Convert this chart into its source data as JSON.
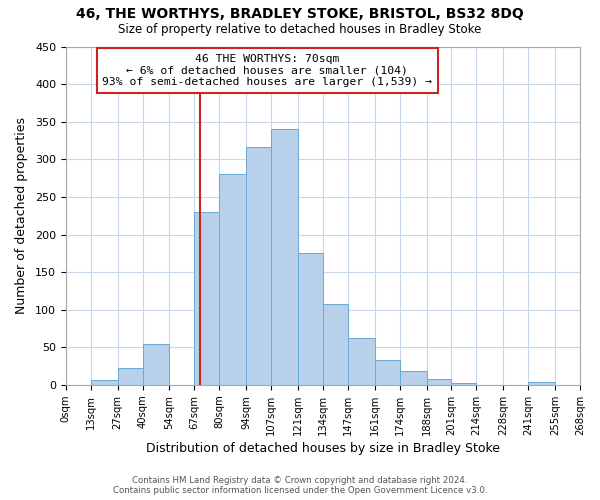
{
  "title_line1": "46, THE WORTHYS, BRADLEY STOKE, BRISTOL, BS32 8DQ",
  "title_line2": "Size of property relative to detached houses in Bradley Stoke",
  "xlabel": "Distribution of detached houses by size in Bradley Stoke",
  "ylabel": "Number of detached properties",
  "footnote_line1": "Contains HM Land Registry data © Crown copyright and database right 2024.",
  "footnote_line2": "Contains public sector information licensed under the Open Government Licence v3.0.",
  "bar_edges": [
    0,
    13,
    27,
    40,
    54,
    67,
    80,
    94,
    107,
    121,
    134,
    147,
    161,
    174,
    188,
    201,
    214,
    228,
    241,
    255,
    268
  ],
  "bar_heights": [
    0,
    6,
    22,
    55,
    0,
    230,
    280,
    317,
    340,
    175,
    108,
    62,
    33,
    19,
    8,
    2,
    0,
    0,
    4,
    0
  ],
  "bar_color": "#b8d0ea",
  "bar_edgecolor": "#6aaad4",
  "tick_labels": [
    "0sqm",
    "13sqm",
    "27sqm",
    "40sqm",
    "54sqm",
    "67sqm",
    "80sqm",
    "94sqm",
    "107sqm",
    "121sqm",
    "134sqm",
    "147sqm",
    "161sqm",
    "174sqm",
    "188sqm",
    "201sqm",
    "214sqm",
    "228sqm",
    "241sqm",
    "255sqm",
    "268sqm"
  ],
  "vline_x": 70,
  "vline_color": "#cc2222",
  "annotation_title": "46 THE WORTHYS: 70sqm",
  "annotation_line1": "← 6% of detached houses are smaller (104)",
  "annotation_line2": "93% of semi-detached houses are larger (1,539) →",
  "annotation_box_color": "#ffffff",
  "annotation_box_edgecolor": "#cc2222",
  "ylim": [
    0,
    450
  ],
  "xlim": [
    0,
    268
  ],
  "background_color": "#ffffff",
  "grid_color": "#c8d8ea"
}
